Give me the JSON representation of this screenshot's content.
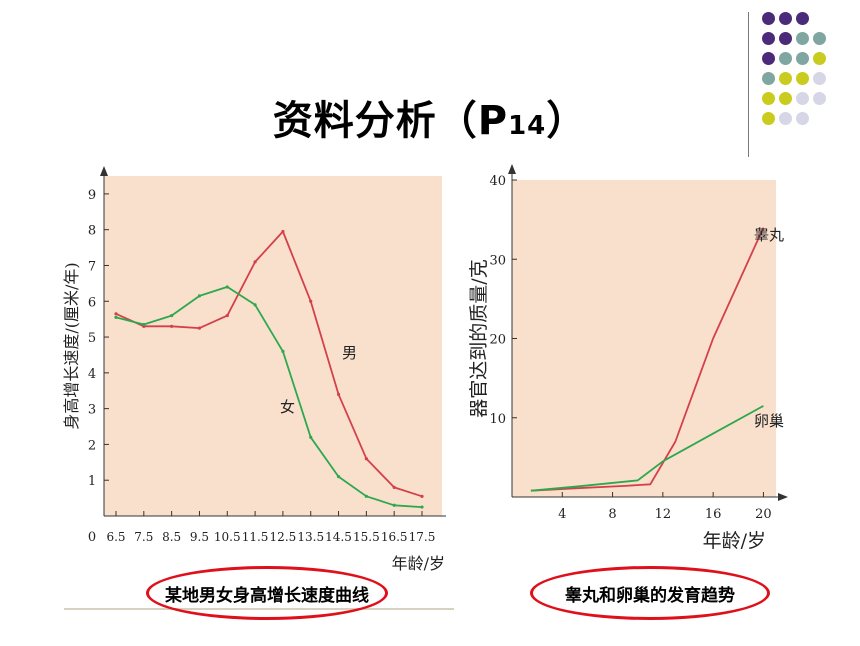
{
  "slide": {
    "title_main": "资料分析（P",
    "title_sub": "14",
    "title_end": "）"
  },
  "decor": {
    "dot_colors": [
      "#4b2a7a",
      "#7fa6a0",
      "#c9cc1e",
      "#d6d6e6"
    ]
  },
  "chart_data": [
    {
      "type": "line",
      "caption": "某地男女身高增长速度曲线",
      "ylabel": "身高增长速度/(厘米/年)",
      "xlabel": "年龄/岁",
      "x": [
        6.5,
        7.5,
        8.5,
        9.5,
        10.5,
        11.5,
        12.5,
        13.5,
        14.5,
        15.5,
        16.5,
        17.5
      ],
      "x_ticks": [
        "6.5",
        "7.5",
        "8.5",
        "9.5",
        "10.5",
        "11.5",
        "12.5",
        "13.5",
        "14.5",
        "15.5",
        "16.5",
        "17.5"
      ],
      "y_ticks": [
        "1",
        "2",
        "3",
        "4",
        "5",
        "6",
        "7",
        "8",
        "9"
      ],
      "origin_label": "0",
      "ylim": [
        0,
        9.5
      ],
      "background": "#f9e0cc",
      "series": [
        {
          "name": "男",
          "color": "#d4404a",
          "values": [
            5.65,
            5.3,
            5.3,
            5.25,
            5.6,
            7.1,
            7.95,
            6.0,
            3.4,
            1.6,
            0.8,
            0.55
          ]
        },
        {
          "name": "女",
          "color": "#2ea84e",
          "values": [
            5.55,
            5.35,
            5.6,
            6.15,
            6.4,
            5.9,
            4.6,
            2.2,
            1.1,
            0.55,
            0.3,
            0.25
          ]
        }
      ]
    },
    {
      "type": "line",
      "caption": "睾丸和卵巢的发育趋势",
      "ylabel": "器官达到的质量/克",
      "xlabel": "年龄/岁",
      "x_ticks": [
        "4",
        "8",
        "12",
        "16",
        "20"
      ],
      "y_ticks": [
        "10",
        "20",
        "30",
        "40"
      ],
      "xlim": [
        0,
        21
      ],
      "ylim": [
        0,
        40
      ],
      "background": "#f9e0cc",
      "series": [
        {
          "name": "睾丸",
          "color": "#d4404a",
          "x": [
            1.5,
            5,
            9,
            11,
            13,
            16,
            20
          ],
          "values": [
            0.8,
            1.1,
            1.4,
            1.6,
            7,
            20,
            34
          ]
        },
        {
          "name": "卵巢",
          "color": "#2ea84e",
          "x": [
            1.5,
            5,
            10,
            12,
            16,
            20
          ],
          "values": [
            0.8,
            1.3,
            2.1,
            4.5,
            8,
            11.5
          ]
        }
      ]
    }
  ]
}
